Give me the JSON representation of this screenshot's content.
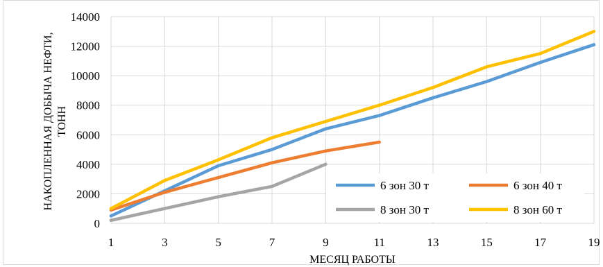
{
  "chart_data": {
    "type": "line",
    "title": "",
    "xlabel": "МЕСЯЦ РАБОТЫ",
    "ylabel_lines": [
      "НАКОПЛЕННАЯ ДОБЫЧА НЕФТИ,",
      "ТОНН"
    ],
    "xlim": [
      1,
      19
    ],
    "ylim": [
      0,
      14000
    ],
    "x_ticks": [
      1,
      3,
      5,
      7,
      9,
      11,
      13,
      15,
      17,
      19
    ],
    "y_ticks": [
      0,
      2000,
      4000,
      6000,
      8000,
      10000,
      12000,
      14000
    ],
    "grid": true,
    "legend_position": "inside-lower-right",
    "series": [
      {
        "name": "6 зон 30 т",
        "color": "#5B9BD5",
        "points": [
          [
            1,
            500
          ],
          [
            3,
            2200
          ],
          [
            5,
            3900
          ],
          [
            7,
            5000
          ],
          [
            9,
            6400
          ],
          [
            11,
            7300
          ],
          [
            13,
            8500
          ],
          [
            15,
            9600
          ],
          [
            17,
            10900
          ],
          [
            19,
            12100
          ]
        ]
      },
      {
        "name": "6 зон 40 т",
        "color": "#ED7D31",
        "points": [
          [
            1,
            900
          ],
          [
            3,
            2100
          ],
          [
            5,
            3100
          ],
          [
            7,
            4100
          ],
          [
            9,
            4900
          ],
          [
            11,
            5500
          ]
        ]
      },
      {
        "name": "8 зон 30 т",
        "color": "#A5A5A5",
        "points": [
          [
            1,
            200
          ],
          [
            3,
            1000
          ],
          [
            5,
            1800
          ],
          [
            7,
            2500
          ],
          [
            9,
            4000
          ]
        ]
      },
      {
        "name": "8 зон 60 т",
        "color": "#FFC000",
        "points": [
          [
            1,
            1000
          ],
          [
            3,
            2900
          ],
          [
            5,
            4300
          ],
          [
            7,
            5800
          ],
          [
            9,
            6900
          ],
          [
            11,
            8000
          ],
          [
            13,
            9200
          ],
          [
            15,
            10600
          ],
          [
            17,
            11500
          ],
          [
            19,
            13000
          ]
        ]
      }
    ]
  }
}
